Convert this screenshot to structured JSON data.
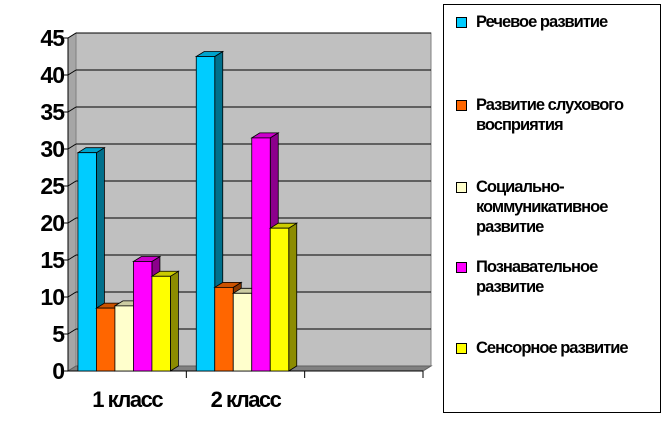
{
  "chart_data": {
    "type": "bar",
    "style": "3d-clustered-column",
    "categories": [
      "1 класс",
      "2 класс",
      ""
    ],
    "series": [
      {
        "name": "Речевое развитие",
        "color": "#00CCFF",
        "values": [
          29.5,
          42.5,
          null
        ]
      },
      {
        "name": "Развитие слухового восприятия",
        "color": "#FF6600",
        "values": [
          8.5,
          11.3,
          null
        ]
      },
      {
        "name": "Социально-коммуникативное развитие",
        "color": "#FFFFCC",
        "values": [
          8.8,
          10.5,
          null
        ]
      },
      {
        "name": "Познавательное развитие",
        "color": "#FF00FF",
        "values": [
          14.8,
          31.5,
          null
        ]
      },
      {
        "name": "Сенсорное развитие",
        "color": "#FFFF00",
        "values": [
          12.8,
          19.3,
          null
        ]
      }
    ],
    "yticks": [
      0,
      5,
      10,
      15,
      20,
      25,
      30,
      35,
      40,
      45
    ],
    "ylim": [
      0,
      45
    ],
    "plot_background": "#C0C0C0",
    "grid": true,
    "legend_position": "right"
  }
}
